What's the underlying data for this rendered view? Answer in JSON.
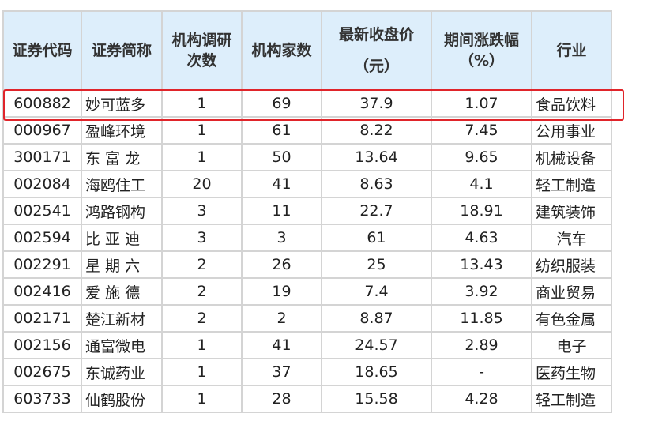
{
  "table": {
    "headers": [
      {
        "line1": "证券代码",
        "line2": ""
      },
      {
        "line1": "证券简称",
        "line2": ""
      },
      {
        "line1": "机构调研",
        "line2": "次数"
      },
      {
        "line1": "机构家数",
        "line2": ""
      },
      {
        "line1": "最新收盘价",
        "line2": "（元）"
      },
      {
        "line1": "期间涨跌幅",
        "line2": "（%）"
      },
      {
        "line1": "行业",
        "line2": ""
      }
    ],
    "rows": [
      [
        "600882",
        "妙可蓝多",
        "1",
        "69",
        "37.9",
        "1.07",
        "食品饮料"
      ],
      [
        "000967",
        "盈峰环境",
        "1",
        "61",
        "8.22",
        "7.45",
        "公用事业"
      ],
      [
        "300171",
        "东 富 龙",
        "1",
        "50",
        "13.64",
        "9.65",
        "机械设备"
      ],
      [
        "002084",
        "海鸥住工",
        "20",
        "41",
        "8.63",
        "4.1",
        "轻工制造"
      ],
      [
        "002541",
        "鸿路钢构",
        "3",
        "11",
        "22.7",
        "18.91",
        "建筑装饰"
      ],
      [
        "002594",
        "比 亚 迪",
        "3",
        "3",
        "61",
        "4.63",
        "汽车"
      ],
      [
        "002291",
        "星 期 六",
        "2",
        "26",
        "25",
        "13.43",
        "纺织服装"
      ],
      [
        "002416",
        "爱 施 德",
        "2",
        "19",
        "7.4",
        "3.92",
        "商业贸易"
      ],
      [
        "002171",
        "楚江新材",
        "2",
        "2",
        "8.87",
        "11.85",
        "有色金属"
      ],
      [
        "002156",
        "通富微电",
        "1",
        "41",
        "24.57",
        "2.89",
        "电子"
      ],
      [
        "002675",
        "东诚药业",
        "1",
        "37",
        "18.65",
        "-",
        "医药生物"
      ],
      [
        "603733",
        "仙鹤股份",
        "1",
        "28",
        "15.58",
        "4.28",
        "轻工制造"
      ]
    ],
    "highlighted_row": 0,
    "highlight_color": "#e0242a",
    "header_bg": "#ddeefb"
  }
}
